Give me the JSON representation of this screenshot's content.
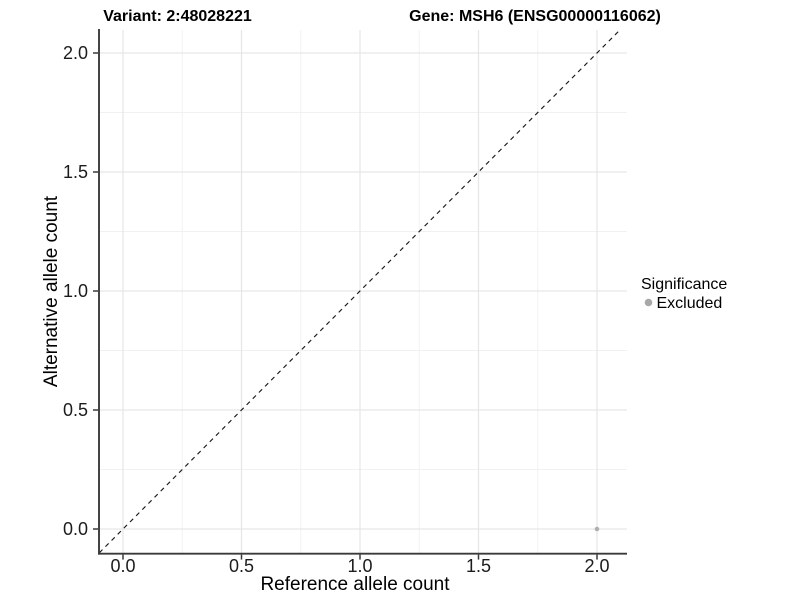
{
  "chart_data": {
    "type": "scatter",
    "title_left": "Variant: 2:48028221",
    "title_right": "Gene: MSH6 (ENSG00000116062)",
    "xlabel": "Reference allele count",
    "ylabel": "Alternative allele count",
    "xlim": [
      -0.1,
      2.1
    ],
    "ylim": [
      -0.1,
      2.1
    ],
    "x_ticks": [
      "0.0",
      "0.5",
      "1.0",
      "1.5",
      "2.0"
    ],
    "y_ticks": [
      "0.0",
      "0.5",
      "1.0",
      "1.5",
      "2.0"
    ],
    "grid": "major+minor, light gray on white",
    "legend_position": "right",
    "reference_line": {
      "style": "dashed",
      "from": [
        -0.1,
        -0.1
      ],
      "to": [
        2.1,
        2.1
      ],
      "color": "#1a1a1a"
    },
    "series": [
      {
        "name": "Excluded",
        "color": "#b0b0b0",
        "points": [
          [
            2.0,
            0.0
          ]
        ]
      }
    ],
    "legend": {
      "title": "Significance",
      "items": [
        {
          "label": "Excluded",
          "color": "#a8a8a8"
        }
      ]
    }
  },
  "colors": {
    "background": "#ffffff",
    "grid_major": "#e6e6e6",
    "grid_minor": "#f1f1f1",
    "axis": "#3a3a3a",
    "point_gray": "#b0b0b0"
  }
}
